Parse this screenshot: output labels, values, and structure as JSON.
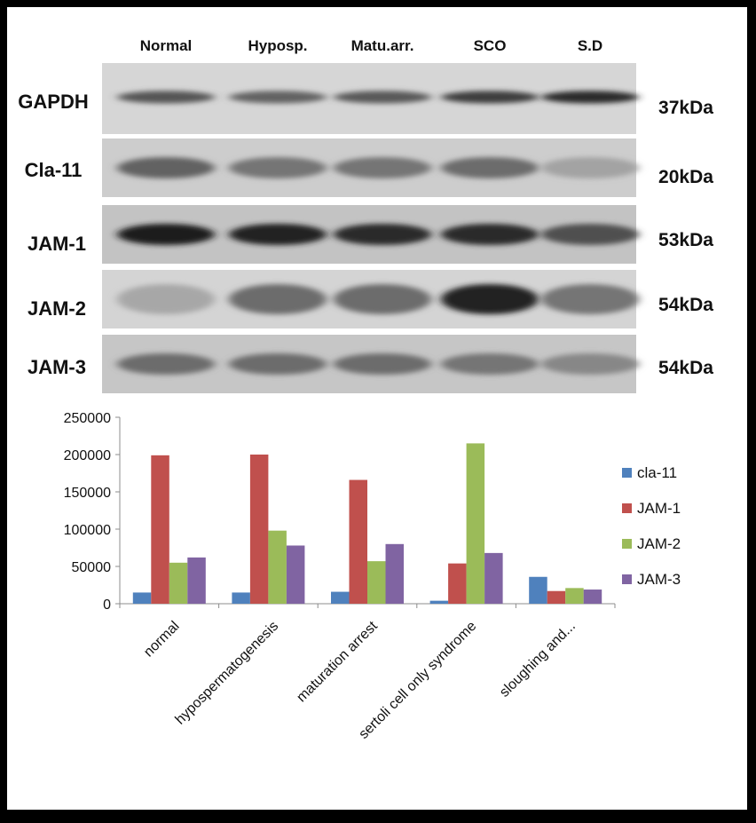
{
  "blot": {
    "lanes": [
      "Normal",
      "Hyposp.",
      "Matu.arr.",
      "SCO",
      "S.D"
    ],
    "rows": [
      {
        "label": "GAPDH",
        "kda": "37kDa",
        "intensity": [
          0.62,
          0.55,
          0.6,
          0.75,
          0.85
        ]
      },
      {
        "label": "Cla-11",
        "kda": "20kDa",
        "intensity": [
          0.55,
          0.45,
          0.45,
          0.5,
          0.2
        ]
      },
      {
        "label": "JAM-1",
        "kda": "53kDa",
        "intensity": [
          0.92,
          0.9,
          0.85,
          0.85,
          0.65
        ]
      },
      {
        "label": "JAM-2",
        "kda": "54kDa",
        "intensity": [
          0.18,
          0.5,
          0.5,
          0.9,
          0.45
        ]
      },
      {
        "label": "JAM-3",
        "kda": "54kDa",
        "intensity": [
          0.5,
          0.5,
          0.5,
          0.45,
          0.35
        ]
      }
    ]
  },
  "colors": {
    "cla-11": "#4f81bd",
    "JAM-1": "#c0504d",
    "JAM-2": "#9bbb59",
    "JAM-3": "#8064a2"
  },
  "chart_data": {
    "type": "bar",
    "categories": [
      "normal",
      "hypospermatogenesis",
      "maturation arrest",
      "sertoli cell only syndrome",
      "sloughing and..."
    ],
    "series": [
      {
        "name": "cla-11",
        "values": [
          15000,
          15000,
          16000,
          4000,
          36000
        ]
      },
      {
        "name": "JAM-1",
        "values": [
          199000,
          200000,
          166000,
          54000,
          17000
        ]
      },
      {
        "name": "JAM-2",
        "values": [
          55000,
          98000,
          57000,
          215000,
          21000
        ]
      },
      {
        "name": "JAM-3",
        "values": [
          62000,
          78000,
          80000,
          68000,
          19000
        ]
      }
    ],
    "ylim": [
      0,
      250000
    ],
    "yticks": [
      "0",
      "50000",
      "100000",
      "150000",
      "200000",
      "250000"
    ],
    "grid": false,
    "legend": "right"
  }
}
